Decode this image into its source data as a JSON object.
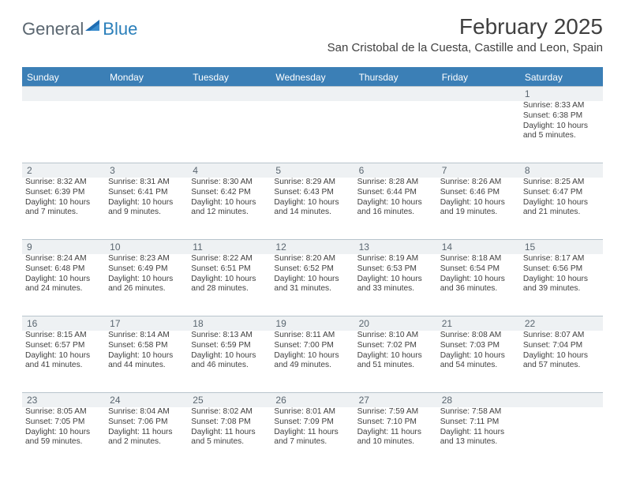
{
  "header": {
    "logo_text1": "General",
    "logo_text2": "Blue",
    "month_title": "February 2025",
    "location": "San Cristobal de la Cuesta, Castille and Leon, Spain"
  },
  "colors": {
    "header_bar": "#3b7fb6",
    "daynum_bg": "#eef1f3",
    "divider": "#b8c4cc",
    "text": "#404040",
    "logo_gray": "#5a6670",
    "logo_blue": "#2a7fba"
  },
  "weekdays": [
    "Sunday",
    "Monday",
    "Tuesday",
    "Wednesday",
    "Thursday",
    "Friday",
    "Saturday"
  ],
  "weeks": [
    [
      null,
      null,
      null,
      null,
      null,
      null,
      {
        "n": "1",
        "sr": "Sunrise: 8:33 AM",
        "ss": "Sunset: 6:38 PM",
        "dl": "Daylight: 10 hours and 5 minutes."
      }
    ],
    [
      {
        "n": "2",
        "sr": "Sunrise: 8:32 AM",
        "ss": "Sunset: 6:39 PM",
        "dl": "Daylight: 10 hours and 7 minutes."
      },
      {
        "n": "3",
        "sr": "Sunrise: 8:31 AM",
        "ss": "Sunset: 6:41 PM",
        "dl": "Daylight: 10 hours and 9 minutes."
      },
      {
        "n": "4",
        "sr": "Sunrise: 8:30 AM",
        "ss": "Sunset: 6:42 PM",
        "dl": "Daylight: 10 hours and 12 minutes."
      },
      {
        "n": "5",
        "sr": "Sunrise: 8:29 AM",
        "ss": "Sunset: 6:43 PM",
        "dl": "Daylight: 10 hours and 14 minutes."
      },
      {
        "n": "6",
        "sr": "Sunrise: 8:28 AM",
        "ss": "Sunset: 6:44 PM",
        "dl": "Daylight: 10 hours and 16 minutes."
      },
      {
        "n": "7",
        "sr": "Sunrise: 8:26 AM",
        "ss": "Sunset: 6:46 PM",
        "dl": "Daylight: 10 hours and 19 minutes."
      },
      {
        "n": "8",
        "sr": "Sunrise: 8:25 AM",
        "ss": "Sunset: 6:47 PM",
        "dl": "Daylight: 10 hours and 21 minutes."
      }
    ],
    [
      {
        "n": "9",
        "sr": "Sunrise: 8:24 AM",
        "ss": "Sunset: 6:48 PM",
        "dl": "Daylight: 10 hours and 24 minutes."
      },
      {
        "n": "10",
        "sr": "Sunrise: 8:23 AM",
        "ss": "Sunset: 6:49 PM",
        "dl": "Daylight: 10 hours and 26 minutes."
      },
      {
        "n": "11",
        "sr": "Sunrise: 8:22 AM",
        "ss": "Sunset: 6:51 PM",
        "dl": "Daylight: 10 hours and 28 minutes."
      },
      {
        "n": "12",
        "sr": "Sunrise: 8:20 AM",
        "ss": "Sunset: 6:52 PM",
        "dl": "Daylight: 10 hours and 31 minutes."
      },
      {
        "n": "13",
        "sr": "Sunrise: 8:19 AM",
        "ss": "Sunset: 6:53 PM",
        "dl": "Daylight: 10 hours and 33 minutes."
      },
      {
        "n": "14",
        "sr": "Sunrise: 8:18 AM",
        "ss": "Sunset: 6:54 PM",
        "dl": "Daylight: 10 hours and 36 minutes."
      },
      {
        "n": "15",
        "sr": "Sunrise: 8:17 AM",
        "ss": "Sunset: 6:56 PM",
        "dl": "Daylight: 10 hours and 39 minutes."
      }
    ],
    [
      {
        "n": "16",
        "sr": "Sunrise: 8:15 AM",
        "ss": "Sunset: 6:57 PM",
        "dl": "Daylight: 10 hours and 41 minutes."
      },
      {
        "n": "17",
        "sr": "Sunrise: 8:14 AM",
        "ss": "Sunset: 6:58 PM",
        "dl": "Daylight: 10 hours and 44 minutes."
      },
      {
        "n": "18",
        "sr": "Sunrise: 8:13 AM",
        "ss": "Sunset: 6:59 PM",
        "dl": "Daylight: 10 hours and 46 minutes."
      },
      {
        "n": "19",
        "sr": "Sunrise: 8:11 AM",
        "ss": "Sunset: 7:00 PM",
        "dl": "Daylight: 10 hours and 49 minutes."
      },
      {
        "n": "20",
        "sr": "Sunrise: 8:10 AM",
        "ss": "Sunset: 7:02 PM",
        "dl": "Daylight: 10 hours and 51 minutes."
      },
      {
        "n": "21",
        "sr": "Sunrise: 8:08 AM",
        "ss": "Sunset: 7:03 PM",
        "dl": "Daylight: 10 hours and 54 minutes."
      },
      {
        "n": "22",
        "sr": "Sunrise: 8:07 AM",
        "ss": "Sunset: 7:04 PM",
        "dl": "Daylight: 10 hours and 57 minutes."
      }
    ],
    [
      {
        "n": "23",
        "sr": "Sunrise: 8:05 AM",
        "ss": "Sunset: 7:05 PM",
        "dl": "Daylight: 10 hours and 59 minutes."
      },
      {
        "n": "24",
        "sr": "Sunrise: 8:04 AM",
        "ss": "Sunset: 7:06 PM",
        "dl": "Daylight: 11 hours and 2 minutes."
      },
      {
        "n": "25",
        "sr": "Sunrise: 8:02 AM",
        "ss": "Sunset: 7:08 PM",
        "dl": "Daylight: 11 hours and 5 minutes."
      },
      {
        "n": "26",
        "sr": "Sunrise: 8:01 AM",
        "ss": "Sunset: 7:09 PM",
        "dl": "Daylight: 11 hours and 7 minutes."
      },
      {
        "n": "27",
        "sr": "Sunrise: 7:59 AM",
        "ss": "Sunset: 7:10 PM",
        "dl": "Daylight: 11 hours and 10 minutes."
      },
      {
        "n": "28",
        "sr": "Sunrise: 7:58 AM",
        "ss": "Sunset: 7:11 PM",
        "dl": "Daylight: 11 hours and 13 minutes."
      },
      null
    ]
  ]
}
